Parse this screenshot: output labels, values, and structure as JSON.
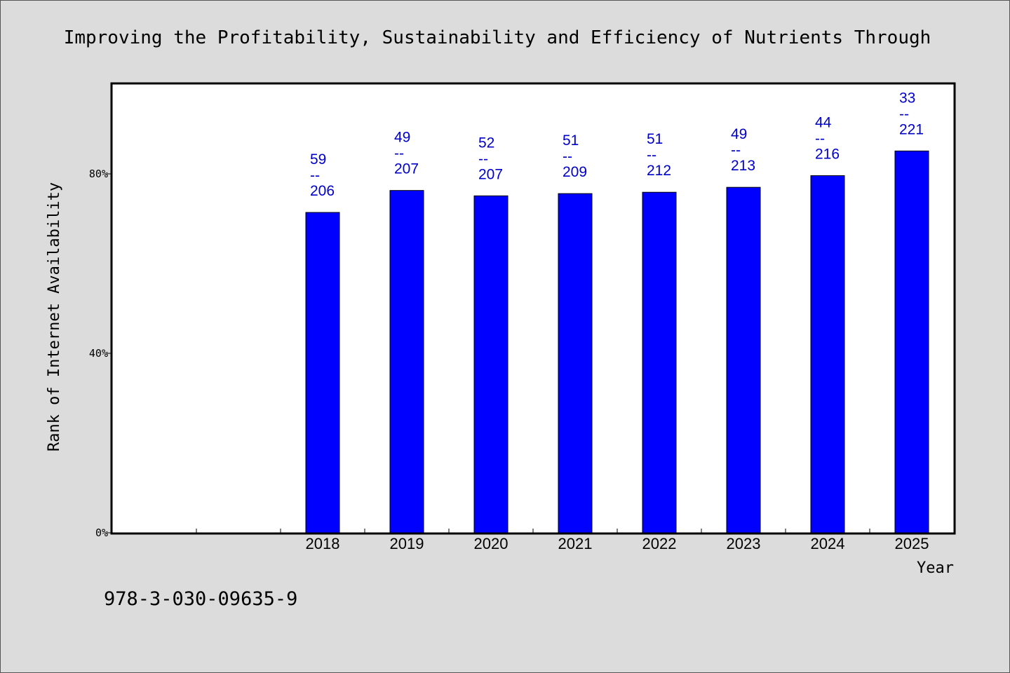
{
  "chart_data": {
    "type": "bar",
    "title": "Improving the Profitability, Sustainability and Efficiency of Nutrients Through",
    "xlabel": "Year",
    "ylabel": "Rank of Internet Availability",
    "ylim": [
      0,
      100
    ],
    "yticks": [
      "0%",
      "40%",
      "80%"
    ],
    "ytick_values": [
      0,
      40,
      80
    ],
    "categories": [
      "2018",
      "2019",
      "2020",
      "2021",
      "2022",
      "2023",
      "2024",
      "2025"
    ],
    "values": [
      71.4,
      76.3,
      75.1,
      75.6,
      75.9,
      77.0,
      79.6,
      85.1
    ],
    "annotations": [
      {
        "rank": "59",
        "sep": "--",
        "total": "206"
      },
      {
        "rank": "49",
        "sep": "--",
        "total": "207"
      },
      {
        "rank": "52",
        "sep": "--",
        "total": "207"
      },
      {
        "rank": "51",
        "sep": "--",
        "total": "209"
      },
      {
        "rank": "51",
        "sep": "--",
        "total": "212"
      },
      {
        "rank": "49",
        "sep": "--",
        "total": "213"
      },
      {
        "rank": "44",
        "sep": "--",
        "total": "216"
      },
      {
        "rank": "33",
        "sep": "--",
        "total": "221"
      }
    ],
    "empty_leading_slots": 2,
    "bar_color": "#0000ff",
    "label_color": "#0000cc",
    "grid": false
  },
  "footer": {
    "isbn": "978-3-030-09635-9"
  }
}
